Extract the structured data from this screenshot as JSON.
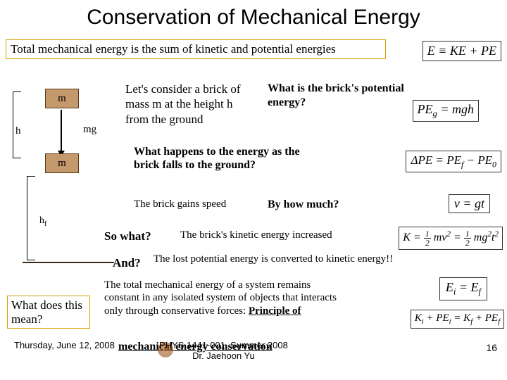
{
  "title": "Conservation of Mechanical Energy",
  "statement": "Total mechanical energy is the sum of kinetic and potential energies",
  "eq_E": "E ≡ KE + PE",
  "diagram": {
    "h_label": "h",
    "hf_label_main": "h",
    "hf_label_sub": "f",
    "brick_label": "m",
    "mg_label": "mg",
    "brick_color": "#c49a6c",
    "border_color": "#5a3a1a"
  },
  "lets": "Let's consider a brick of mass m at the height h from the ground",
  "whatpot": "What is the brick's potential energy?",
  "eq_PE_html": "PE<span class='sub'>g</span> = mgh",
  "whathap": "What happens to the energy as the brick falls to the ground?",
  "eq_dPE_html": "ΔPE = PE<span class='sub'>f</span> − PE<span class='sub'>0</span>",
  "gains": "The brick gains speed",
  "byhow": "By how much?",
  "eq_v": "v = gt",
  "sowhat": "So what?",
  "keinc": "The brick's kinetic energy increased",
  "eq_K_html": "K = <span class='frac'><span class='n'>1</span><span class='d'>2</span></span> mv<span class='sup'>2</span> = <span class='frac'><span class='n'>1</span><span class='d'>2</span></span> mg<span class='sup'>2</span>t<span class='sup'>2</span>",
  "and": "And?",
  "lost": "The lost potential energy is converted to kinetic energy!!",
  "total": "The total mechanical energy of a system remains constant in any isolated system of objects that interacts only through conservative forces:",
  "eq_Ei_html": "E<span class='sub'>i</span> = E<span class='sub'>f</span>",
  "eq_Ki_html": "K<span class='sub'>i</span> + PE<span class='sub'>i</span> = K<span class='sub'>f</span> + PE<span class='sub'>f</span>",
  "principle": "Principle of",
  "mechcons": "mechanical energy conservation",
  "whatmean": "What does this mean?",
  "footer_date": "Thursday, June 12, 2008",
  "footer_course": "PHYS 1441-001, Summer 2008\nDr. Jaehoon Yu",
  "page": "16",
  "colors": {
    "box_border": "#d4a000",
    "eq_border": "#333333"
  }
}
